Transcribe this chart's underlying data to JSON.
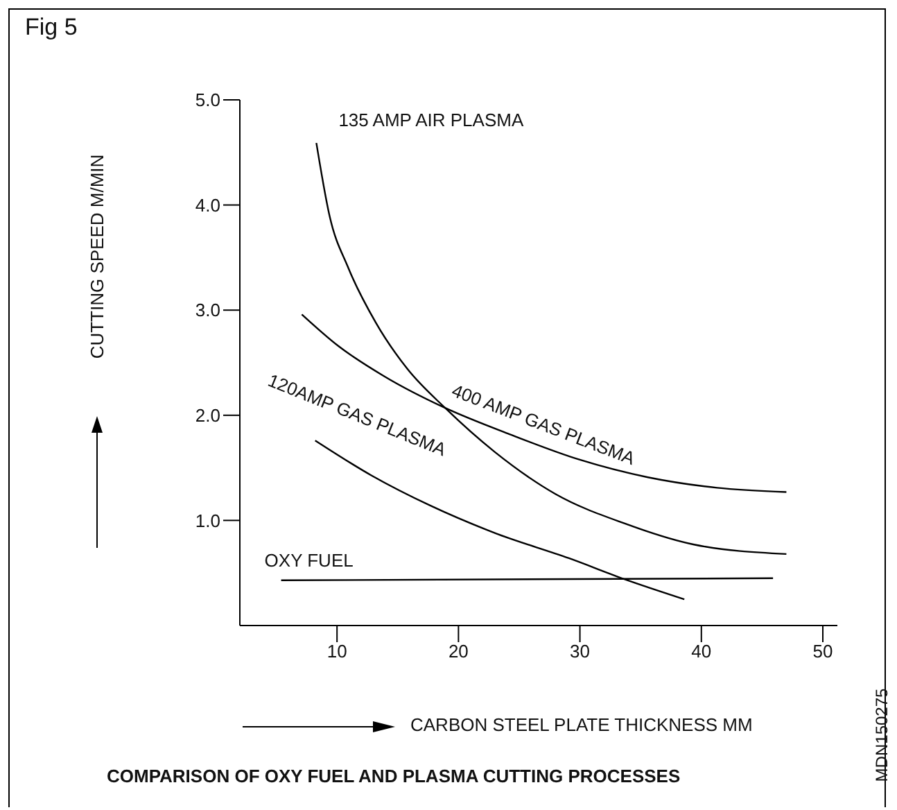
{
  "chart_data": {
    "type": "line",
    "title": "Fig 5",
    "xlabel": "CARBON STEEL PLATE THICKNESS MM",
    "ylabel": "CUTTING SPEED M/MIN",
    "xlim": [
      2,
      51.2
    ],
    "xticks": [
      10,
      20,
      30,
      40,
      50
    ],
    "ylim": [
      0,
      5
    ],
    "yticks": [
      {
        "value": 1,
        "label": "1.0"
      },
      {
        "value": 2,
        "label": "2.0"
      },
      {
        "value": 3,
        "label": "3.0"
      },
      {
        "value": 4,
        "label": "4.0"
      },
      {
        "value": 5,
        "label": "5.0"
      }
    ],
    "series": [
      {
        "name": "135 AMP AIR PLASMA",
        "color": "#000000",
        "x": [
          8.3,
          9.4,
          10.9,
          13.2,
          15.8,
          18.9,
          23,
          28,
          33.7,
          39.4,
          47
        ],
        "values": [
          4.59,
          3.89,
          3.41,
          2.88,
          2.44,
          2.07,
          1.65,
          1.25,
          0.97,
          0.77,
          0.68
        ]
      },
      {
        "name": "400 AMP GAS PLASMA",
        "color": "#000000",
        "x": [
          7.1,
          10.1,
          13.9,
          18.9,
          24.2,
          29.9,
          35.6,
          41.3,
          47
        ],
        "values": [
          2.96,
          2.66,
          2.37,
          2.07,
          1.82,
          1.58,
          1.41,
          1.31,
          1.27
        ]
      },
      {
        "name": "120AMP GAS PLASMA",
        "color": "#000000",
        "x": [
          8.2,
          12.8,
          17.7,
          23,
          29.1,
          33.7,
          38.6
        ],
        "values": [
          1.76,
          1.43,
          1.14,
          0.88,
          0.64,
          0.44,
          0.25
        ]
      },
      {
        "name": "OXY FUEL",
        "color": "#000000",
        "x": [
          5.4,
          45.9
        ],
        "values": [
          0.43,
          0.45
        ]
      }
    ],
    "annotations": [
      "COMPARISON OF OXY FUEL AND PLASMA CUTTING PROCESSES",
      "MDN150275"
    ]
  }
}
